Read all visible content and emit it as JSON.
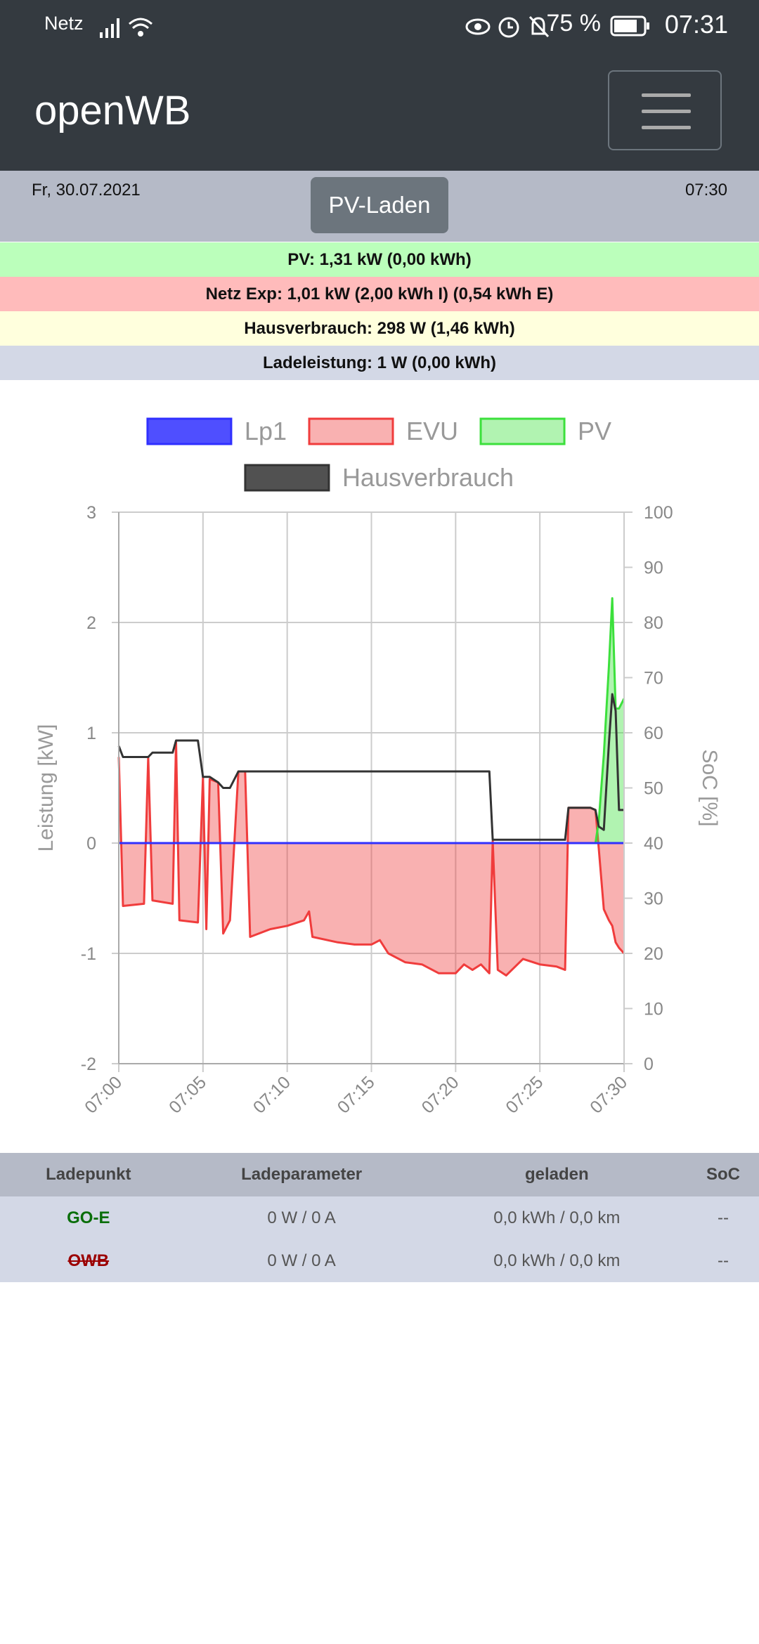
{
  "status_bar": {
    "carrier": "Netz",
    "battery": "75 %",
    "time": "07:31"
  },
  "header": {
    "title": "openWB"
  },
  "info": {
    "date": "Fr, 30.07.2021",
    "mode_button": "PV-Laden",
    "time": "07:30",
    "pv": "PV: 1,31 kW (0,00 kWh)",
    "grid": "Netz Exp: 1,01 kW (2,00 kWh I) (0,54 kWh E)",
    "house": "Hausverbrauch: 298 W (1,46 kWh)",
    "charging": "Ladeleistung: 1 W (0,00 kWh)"
  },
  "chart_data": {
    "type": "line",
    "ylabel": "Leistung [kW]",
    "y2label": "SoC [%]",
    "x": [
      0,
      0.25,
      1.5,
      1.75,
      2,
      3.2,
      3.4,
      3.6,
      4.7,
      5,
      5.2,
      5.4,
      5.9,
      6.2,
      6.6,
      7.1,
      7.5,
      7.8,
      9,
      10,
      11,
      11.3,
      11.5,
      13,
      14,
      15,
      15.5,
      16,
      17,
      18,
      19,
      20,
      20.5,
      21,
      21.5,
      22,
      22.2,
      22.5,
      23,
      24,
      25,
      26,
      26.5,
      26.7,
      28,
      28.3,
      28.5,
      28.8,
      29.1,
      29.3,
      29.5,
      29.7,
      30
    ],
    "xlim": [
      0,
      30
    ],
    "xticks": [
      {
        "value": 0,
        "label": "07:00"
      },
      {
        "value": 5,
        "label": "07:05"
      },
      {
        "value": 10,
        "label": "07:10"
      },
      {
        "value": 15,
        "label": "07:15"
      },
      {
        "value": 20,
        "label": "07:20"
      },
      {
        "value": 25,
        "label": "07:25"
      },
      {
        "value": 30,
        "label": "07:30"
      }
    ],
    "ylim": [
      -2,
      3
    ],
    "yticks": [
      -2,
      -1,
      0,
      1,
      2,
      3
    ],
    "y2lim": [
      0,
      100
    ],
    "y2ticks": [
      0,
      10,
      20,
      30,
      40,
      50,
      60,
      70,
      80,
      90,
      100
    ],
    "grid": true,
    "legend": "top",
    "series": [
      {
        "name": "Lp1",
        "color": "#3030ff",
        "area": false,
        "values": [
          0,
          0,
          0,
          0,
          0,
          0,
          0,
          0,
          0,
          0,
          0,
          0,
          0,
          0,
          0,
          0,
          0,
          0,
          0,
          0,
          0,
          0,
          0,
          0,
          0,
          0,
          0,
          0,
          0,
          0,
          0,
          0,
          0,
          0,
          0,
          0,
          0,
          0,
          0,
          0,
          0,
          0,
          0,
          0,
          0,
          0,
          0,
          0,
          0,
          0,
          0,
          0,
          0
        ]
      },
      {
        "name": "EVU",
        "color": "#f03c3c",
        "area": true,
        "values": [
          0.78,
          -0.57,
          -0.55,
          0.78,
          -0.52,
          -0.55,
          0.92,
          -0.7,
          -0.72,
          0.6,
          -0.78,
          0.58,
          0.55,
          -0.82,
          -0.7,
          0.65,
          0.65,
          -0.85,
          -0.78,
          -0.75,
          -0.7,
          -0.62,
          -0.85,
          -0.9,
          -0.92,
          -0.92,
          -0.88,
          -1.0,
          -1.08,
          -1.1,
          -1.18,
          -1.18,
          -1.1,
          -1.15,
          -1.1,
          -1.18,
          0.02,
          -1.15,
          -1.2,
          -1.05,
          -1.1,
          -1.12,
          -1.15,
          0.32,
          0.32,
          0.3,
          -0.05,
          -0.6,
          -0.7,
          -0.75,
          -0.9,
          -0.95,
          -1.0
        ]
      },
      {
        "name": "PV",
        "color": "#3ce03c",
        "area": true,
        "values": [
          0,
          0,
          0,
          0,
          0,
          0,
          0,
          0,
          0,
          0,
          0,
          0,
          0,
          0,
          0,
          0,
          0,
          0,
          0,
          0,
          0,
          0,
          0,
          0,
          0,
          0,
          0,
          0,
          0,
          0,
          0,
          0,
          0,
          0,
          0,
          0,
          0,
          0,
          0,
          0,
          0,
          0,
          0,
          0,
          0,
          0,
          0.2,
          0.8,
          1.6,
          2.22,
          1.22,
          1.22,
          1.31
        ]
      },
      {
        "name": "Hausverbrauch",
        "color": "#333333",
        "area": false,
        "values": [
          0.88,
          0.78,
          0.78,
          0.78,
          0.82,
          0.82,
          0.93,
          0.93,
          0.93,
          0.6,
          0.6,
          0.6,
          0.55,
          0.5,
          0.5,
          0.65,
          0.65,
          0.65,
          0.65,
          0.65,
          0.65,
          0.65,
          0.65,
          0.65,
          0.65,
          0.65,
          0.65,
          0.65,
          0.65,
          0.65,
          0.65,
          0.65,
          0.65,
          0.65,
          0.65,
          0.65,
          0.03,
          0.03,
          0.03,
          0.03,
          0.03,
          0.03,
          0.03,
          0.32,
          0.32,
          0.3,
          0.15,
          0.12,
          0.9,
          1.35,
          1.2,
          0.3,
          0.3
        ]
      }
    ]
  },
  "table": {
    "columns": [
      "Ladepunkt",
      "Ladeparameter",
      "geladen",
      "SoC"
    ],
    "rows": [
      [
        "GO-E",
        "0 W / 0 A",
        "0,0 kWh / 0,0 km",
        "--"
      ],
      [
        "OWB",
        "0 W / 0 A",
        "0,0 kWh / 0,0 km",
        "--"
      ]
    ]
  }
}
